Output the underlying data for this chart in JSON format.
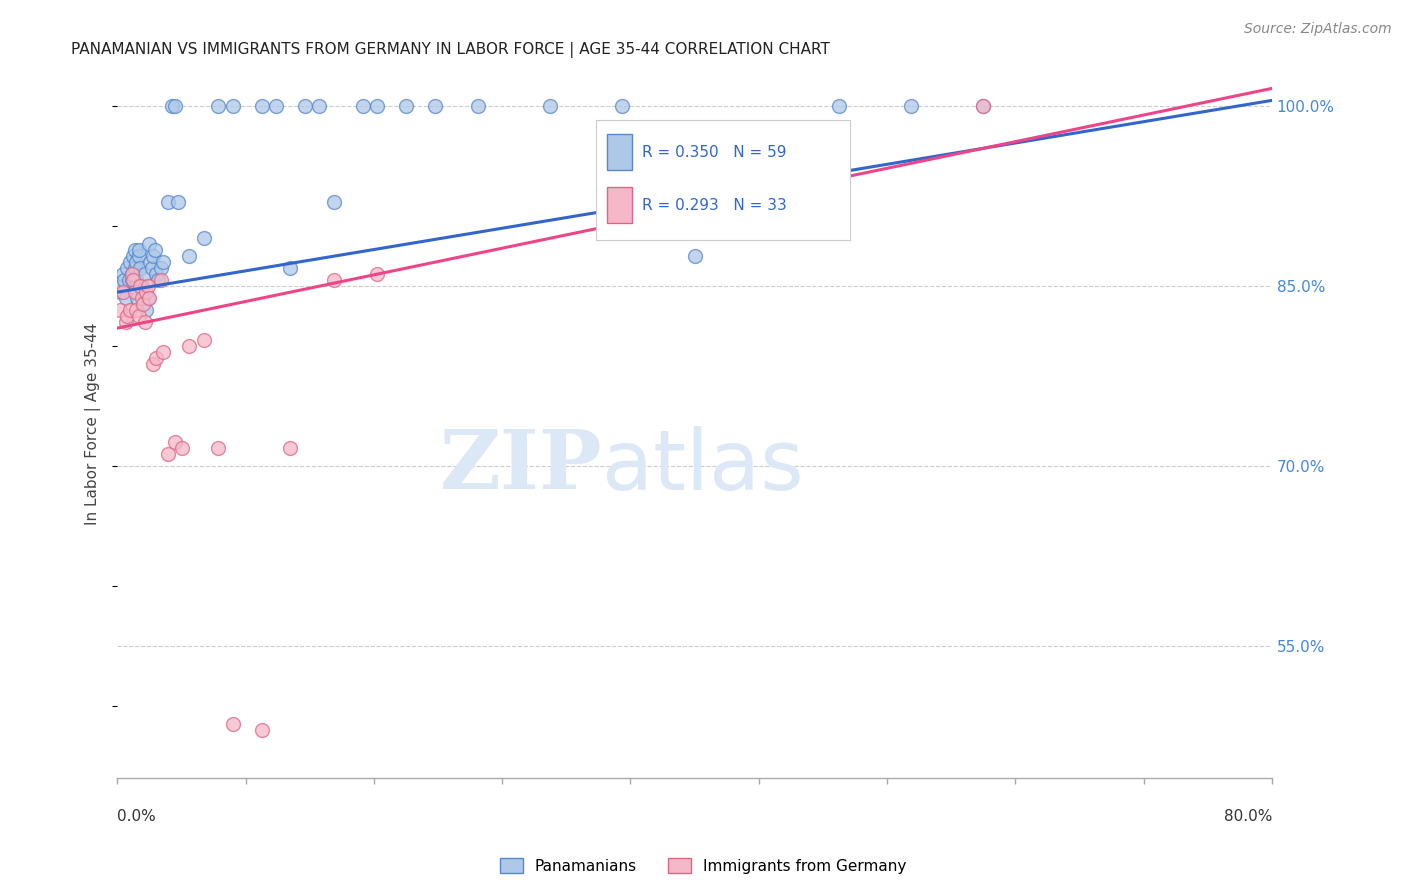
{
  "title": "PANAMANIAN VS IMMIGRANTS FROM GERMANY IN LABOR FORCE | AGE 35-44 CORRELATION CHART",
  "source": "Source: ZipAtlas.com",
  "ylabel": "In Labor Force | Age 35-44",
  "xmin": 0.0,
  "xmax": 80.0,
  "ymin": 44.0,
  "ymax": 103.0,
  "yticks": [
    55.0,
    70.0,
    85.0,
    100.0
  ],
  "blue_R": 0.35,
  "blue_N": 59,
  "pink_R": 0.293,
  "pink_N": 33,
  "blue_color": "#aec8e8",
  "blue_edge": "#5588cc",
  "pink_color": "#f4b8c8",
  "pink_edge": "#dd6688",
  "trend_blue": "#3366cc",
  "trend_pink": "#ee4488",
  "blue_trend_x0": 0.0,
  "blue_trend_y0": 84.5,
  "blue_trend_x1": 80.0,
  "blue_trend_y1": 100.5,
  "pink_trend_x0": 0.0,
  "pink_trend_y0": 81.5,
  "pink_trend_x1": 80.0,
  "pink_trend_y1": 101.5,
  "blue_scatter_x": [
    0.2,
    0.3,
    0.4,
    0.5,
    0.6,
    0.7,
    0.8,
    0.9,
    1.0,
    1.0,
    1.1,
    1.1,
    1.2,
    1.2,
    1.3,
    1.3,
    1.4,
    1.5,
    1.5,
    1.6,
    1.7,
    1.8,
    1.9,
    2.0,
    2.1,
    2.2,
    2.3,
    2.4,
    2.5,
    2.6,
    2.7,
    2.8,
    3.0,
    3.2,
    3.5,
    3.8,
    4.0,
    4.2,
    5.0,
    6.0,
    7.0,
    8.0,
    10.0,
    11.0,
    12.0,
    13.0,
    14.0,
    15.0,
    17.0,
    18.0,
    20.0,
    22.0,
    25.0,
    30.0,
    35.0,
    40.0,
    50.0,
    55.0,
    60.0
  ],
  "blue_scatter_y": [
    84.5,
    85.0,
    86.0,
    85.5,
    84.0,
    86.5,
    85.5,
    87.0,
    86.0,
    85.5,
    87.5,
    86.0,
    88.0,
    86.5,
    87.0,
    85.5,
    84.0,
    87.5,
    88.0,
    86.5,
    85.0,
    84.5,
    86.0,
    83.0,
    84.0,
    88.5,
    87.0,
    86.5,
    87.5,
    88.0,
    86.0,
    85.5,
    86.5,
    87.0,
    92.0,
    100.0,
    100.0,
    92.0,
    87.5,
    89.0,
    100.0,
    100.0,
    100.0,
    100.0,
    86.5,
    100.0,
    100.0,
    92.0,
    100.0,
    100.0,
    100.0,
    100.0,
    100.0,
    100.0,
    100.0,
    87.5,
    100.0,
    100.0,
    100.0
  ],
  "pink_scatter_x": [
    0.2,
    0.4,
    0.6,
    0.7,
    0.9,
    1.0,
    1.1,
    1.2,
    1.3,
    1.5,
    1.6,
    1.7,
    1.8,
    1.9,
    2.0,
    2.1,
    2.2,
    2.5,
    2.7,
    3.0,
    3.2,
    3.5,
    4.0,
    4.5,
    5.0,
    6.0,
    7.0,
    8.0,
    10.0,
    12.0,
    15.0,
    18.0,
    60.0
  ],
  "pink_scatter_y": [
    83.0,
    84.5,
    82.0,
    82.5,
    83.0,
    86.0,
    85.5,
    84.5,
    83.0,
    82.5,
    85.0,
    84.0,
    83.5,
    82.0,
    84.5,
    85.0,
    84.0,
    78.5,
    79.0,
    85.5,
    79.5,
    71.0,
    72.0,
    71.5,
    80.0,
    80.5,
    71.5,
    48.5,
    48.0,
    71.5,
    85.5,
    86.0,
    100.0
  ]
}
